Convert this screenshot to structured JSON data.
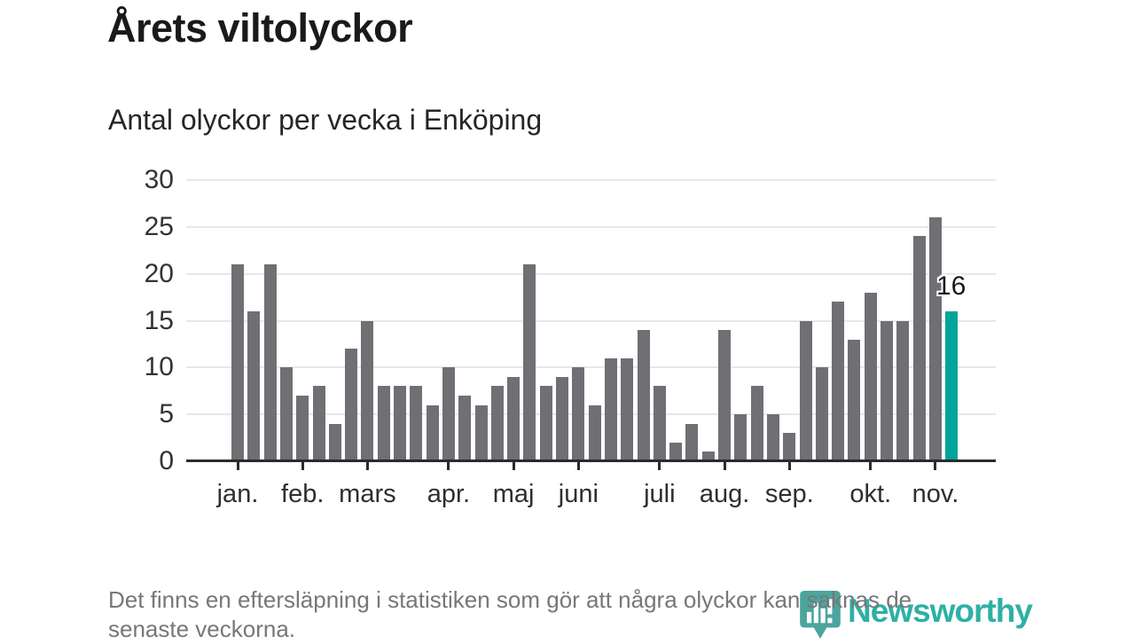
{
  "title": "Årets viltolyckor",
  "subtitle": "Antal olyckor per vecka i Enköping",
  "footer": {
    "lines": [
      "Det finns en eftersläpning i statistiken som gör att några olyckor kan saknas de",
      "senaste veckorna."
    ]
  },
  "brand": {
    "name": "Newsworthy",
    "icon": "newsworthy-bubble-chart-icon",
    "icon_color": "#4ba59e",
    "text_color": "#2eb0a6"
  },
  "colors": {
    "bar": "#6f6f74",
    "highlight": "#00a49b",
    "gridline": "#e7e7e7",
    "axis": "#2b2b2b",
    "title_text": "#1a1a1a",
    "axis_text": "#333333",
    "footer_text": "#77777b"
  },
  "chart_data": {
    "type": "bar",
    "title": "Årets viltolyckor",
    "subtitle": "Antal olyckor per vecka i Enköping",
    "xlabel": "",
    "ylabel": "",
    "ylim": [
      0,
      30
    ],
    "yticks": [
      0,
      5,
      10,
      15,
      20,
      25,
      30
    ],
    "grid": true,
    "values": [
      21,
      16,
      21,
      10,
      7,
      8,
      4,
      12,
      15,
      8,
      8,
      8,
      6,
      10,
      7,
      6,
      8,
      9,
      21,
      8,
      9,
      10,
      6,
      11,
      11,
      14,
      8,
      2,
      4,
      1,
      14,
      5,
      8,
      5,
      3,
      15,
      10,
      17,
      13,
      18,
      15,
      15,
      24,
      26,
      16
    ],
    "highlight_last": true,
    "last_value_label": "16",
    "month_ticks": [
      {
        "label": "jan.",
        "index": 0
      },
      {
        "label": "feb.",
        "index": 4
      },
      {
        "label": "mars",
        "index": 8
      },
      {
        "label": "apr.",
        "index": 13
      },
      {
        "label": "maj",
        "index": 17
      },
      {
        "label": "juni",
        "index": 21
      },
      {
        "label": "juli",
        "index": 26
      },
      {
        "label": "aug.",
        "index": 30
      },
      {
        "label": "sep.",
        "index": 34
      },
      {
        "label": "okt.",
        "index": 39
      },
      {
        "label": "nov.",
        "index": 43
      }
    ]
  }
}
